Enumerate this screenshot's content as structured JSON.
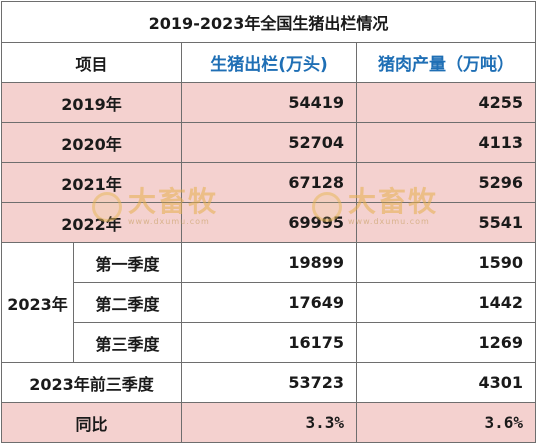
{
  "title": "2019-2023年全国生猪出栏情况",
  "header": {
    "item": "项目",
    "col1": "生猪出栏(万头)",
    "col2": "猪肉产量（万吨）"
  },
  "years": [
    {
      "label": "2019年",
      "hogs": "54419",
      "pork": "4255"
    },
    {
      "label": "2020年",
      "hogs": "52704",
      "pork": "4113"
    },
    {
      "label": "2021年",
      "hogs": "67128",
      "pork": "5296"
    },
    {
      "label": "2022年",
      "hogs": "69995",
      "pork": "5541"
    }
  ],
  "year2023": {
    "label": "2023年",
    "quarters": [
      {
        "label": "第一季度",
        "hogs": "19899",
        "pork": "1590"
      },
      {
        "label": "第二季度",
        "hogs": "17649",
        "pork": "1442"
      },
      {
        "label": "第三季度",
        "hogs": "16175",
        "pork": "1269"
      }
    ]
  },
  "total": {
    "label": "2023年前三季度",
    "hogs": "53723",
    "pork": "4301"
  },
  "yoy": {
    "label": "同比",
    "hogs": "3.3%",
    "pork": "3.6%"
  },
  "watermark": {
    "text": "大畜牧",
    "url": "www.dxumu.com"
  },
  "colors": {
    "pink_row": "#f4d1cf",
    "value_blue": "#1f6fb5",
    "border": "#6e6e6e",
    "watermark": "#e6b04e"
  }
}
